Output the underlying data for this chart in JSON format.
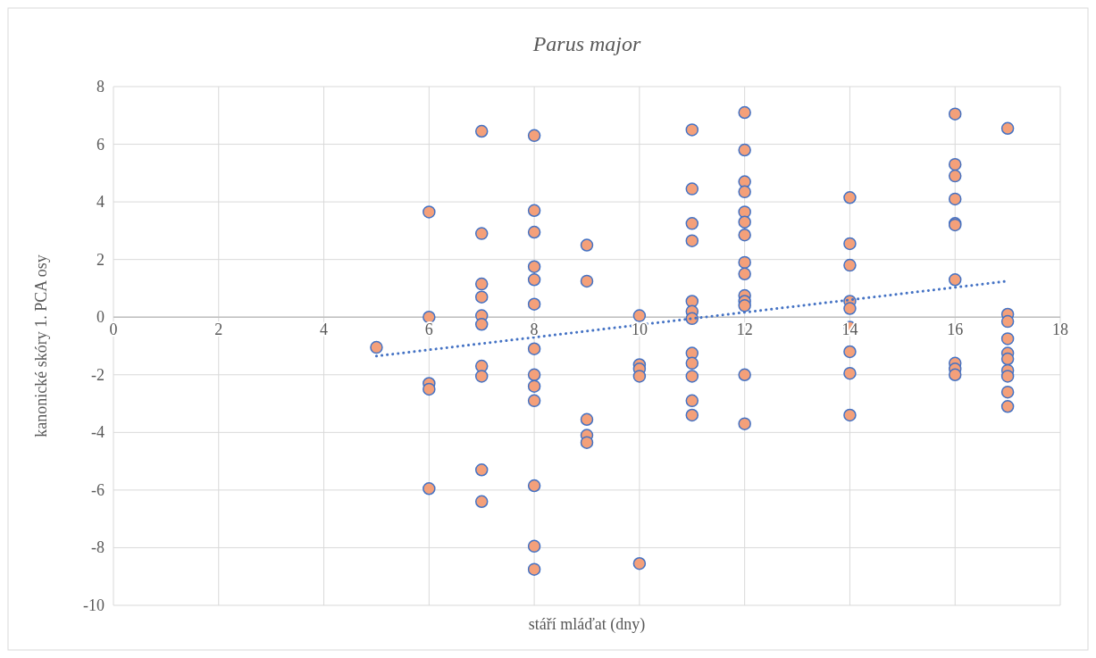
{
  "chart_data": {
    "type": "scatter",
    "title": "Parus major",
    "xlabel": "stáří mláďat (dny)",
    "ylabel": "kanonické skóry 1. PCA osy",
    "xlim": [
      0,
      18
    ],
    "xticks": [
      0,
      2,
      4,
      6,
      8,
      10,
      12,
      14,
      16,
      18
    ],
    "ylim": [
      -10,
      8
    ],
    "yticks": [
      -10,
      -8,
      -6,
      -4,
      -2,
      0,
      2,
      4,
      6,
      8
    ],
    "grid": true,
    "marker": "circle",
    "series": [
      {
        "color": "#f4a07a",
        "x": [
          5,
          6,
          6,
          6,
          6,
          6,
          7,
          7,
          7,
          7,
          7,
          7,
          7,
          7,
          7,
          7,
          8,
          8,
          8,
          8,
          8,
          8,
          8,
          8,
          8,
          8,
          8,
          8,
          8,
          9,
          9,
          9,
          9,
          9,
          10,
          10,
          10,
          10,
          10,
          11,
          11,
          11,
          11,
          11,
          11,
          11,
          11,
          11,
          11,
          11,
          11,
          12,
          12,
          12,
          12,
          12,
          12,
          12,
          12,
          12,
          12,
          12,
          12,
          12,
          12,
          14,
          14,
          14,
          14,
          14,
          14,
          14,
          14,
          14,
          16,
          16,
          16,
          16,
          16,
          16,
          16,
          16,
          16,
          16,
          17,
          17,
          17,
          17,
          17,
          17,
          17,
          17,
          17,
          17
        ],
        "values": [
          -1.05,
          3.65,
          0.0,
          -2.3,
          -2.5,
          -5.95,
          6.45,
          2.9,
          1.15,
          0.7,
          0.05,
          -0.25,
          -1.7,
          -2.05,
          -5.3,
          -6.4,
          6.3,
          3.7,
          2.95,
          1.75,
          1.3,
          0.45,
          -1.1,
          -2.0,
          -2.4,
          -2.9,
          -5.85,
          -7.95,
          -8.75,
          2.5,
          1.25,
          -3.55,
          -4.1,
          -4.35,
          0.05,
          -1.65,
          -1.8,
          -2.05,
          -8.55,
          6.5,
          4.45,
          3.25,
          2.65,
          0.55,
          0.2,
          -0.05,
          -1.25,
          -1.6,
          -2.05,
          -2.9,
          -3.4,
          7.1,
          5.8,
          4.7,
          4.35,
          3.65,
          3.3,
          2.85,
          1.9,
          1.5,
          0.75,
          0.55,
          0.4,
          -2.0,
          -3.7,
          4.15,
          2.55,
          1.8,
          0.55,
          0.3,
          -0.35,
          -1.2,
          -1.95,
          -3.4,
          7.05,
          5.3,
          4.9,
          4.1,
          3.25,
          3.2,
          1.3,
          -1.6,
          -1.8,
          -2.0,
          6.55,
          0.1,
          -0.15,
          -0.75,
          -1.25,
          -1.45,
          -1.85,
          -2.05,
          -2.6,
          -3.1
        ]
      },
      {
        "type": "line",
        "color": "#4472c4",
        "line_style": "dotted",
        "marker": "none",
        "x": [
          5,
          17
        ],
        "values": [
          -1.35,
          1.25
        ]
      }
    ]
  }
}
